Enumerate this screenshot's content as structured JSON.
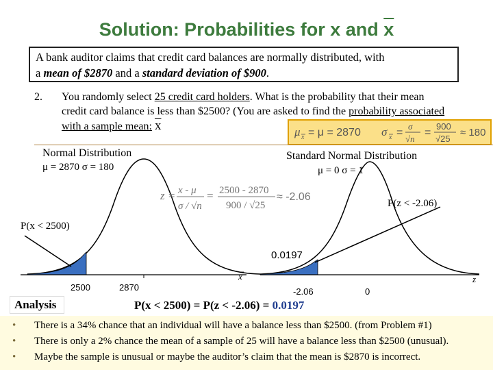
{
  "title": {
    "main": "Solution: Probabilities for x and ",
    "xbar": "x"
  },
  "problem": {
    "line1": "A bank auditor claims that credit card balances are normally distributed, with",
    "line2_prefix": "a ",
    "mean_text": "mean of $2870",
    "and_text": " and a ",
    "sd_text": "standard deviation of $900",
    "end": "."
  },
  "question": {
    "number": "2.",
    "part1": "You randomly select ",
    "underlined1": "25 credit card holders",
    "part2": ". What is the probability that their mean credit card balance is less than $2500? (You are asked to find the ",
    "underlined2": "probability associated with a sample mean:",
    "xbar": "x"
  },
  "formula": {
    "mu_expr": "μ",
    "mu_rhs": "= μ = 2870",
    "sigma_expr": "σ",
    "sigma_eq": "=",
    "sigma_num": "σ",
    "sigma_den": "√n",
    "eq2": "=",
    "val_num": "900",
    "val_den": "√25",
    "result": "≈ 180"
  },
  "left_dist": {
    "heading": "Normal Distribution",
    "params": "μ = 2870   σ = 180"
  },
  "right_dist": {
    "heading": "Standard Normal Distribution",
    "params": "μ = 0   σ = 1"
  },
  "zformula": {
    "lhs": "z =",
    "num1": "x - μ",
    "den1": "σ / √n",
    "eq": "=",
    "num2": "2500 - 2870",
    "den2": "900 / √25",
    "approx": "≈ -2.06"
  },
  "labels": {
    "left_prob": "P(x < 2500)",
    "right_prob": "P(z < -2.06)",
    "area": "0.0197",
    "x_axis": "x",
    "z_axis": "z",
    "tick_2500": "2500",
    "tick_2870": "2870",
    "tick_neg206": "-2.06",
    "tick_0": "0"
  },
  "result": {
    "expr": "P(x < 2500) = P(z < -2.06) = ",
    "value": "0.0197"
  },
  "analysis": {
    "heading": "Analysis",
    "bullets": [
      "There is a 34% chance that an individual will have a balance less than $2500. (from Problem #1)",
      "There is only a 2% chance the mean of a sample of 25 will have a balance less than $2500 (unusual).",
      "Maybe the sample is unusual or maybe the auditor’s claim that the mean is $2870 is incorrect."
    ]
  },
  "colors": {
    "title": "#3d7b3d",
    "shade": "#3a6fc0",
    "box": "#fbe089",
    "result": "#1f3d8f"
  },
  "icons": {
    "bullet": "bullet-dot"
  }
}
